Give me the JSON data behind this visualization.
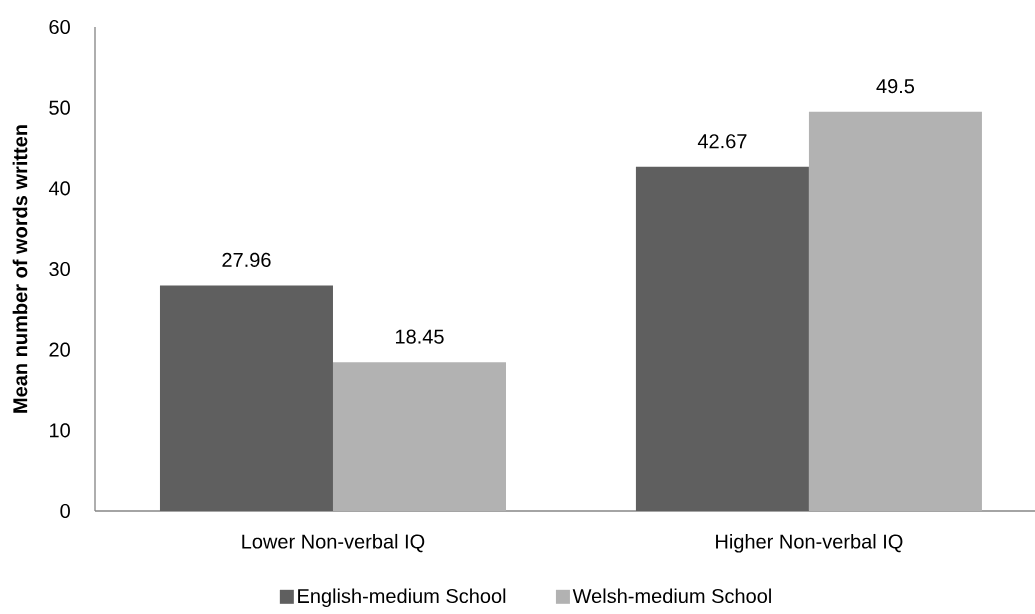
{
  "chart_data": {
    "type": "bar",
    "categories": [
      "Lower Non-verbal IQ",
      "Higher Non-verbal IQ"
    ],
    "series": [
      {
        "name": "English-medium School",
        "color": "#5f5f5f",
        "values": [
          27.96,
          42.67
        ]
      },
      {
        "name": "Welsh-medium School",
        "color": "#b2b2b2",
        "values": [
          18.45,
          49.5
        ]
      }
    ],
    "ylabel": "Mean number of words written",
    "ylim": [
      0,
      60
    ],
    "yticks": [
      0,
      10,
      20,
      30,
      40,
      50,
      60
    ],
    "data_labels": true,
    "legend": "bottom",
    "grid": false
  }
}
